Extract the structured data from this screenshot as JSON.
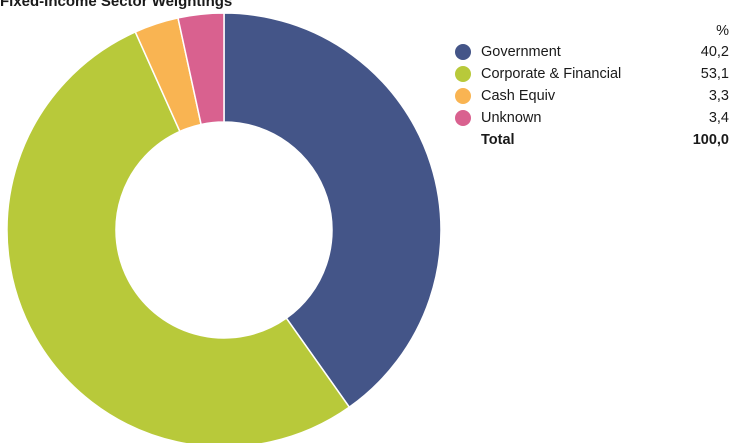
{
  "title": "Fixed-Income Sector Weightings",
  "chart_data": {
    "type": "pie",
    "donut": true,
    "unit": "%",
    "categories": [
      "Government",
      "Corporate & Financial",
      "Cash Equiv",
      "Unknown"
    ],
    "values": [
      40.2,
      53.1,
      3.3,
      3.4
    ],
    "display_values": [
      "40,2",
      "53,1",
      "3,3",
      "3,4"
    ],
    "colors": [
      "#445588",
      "#b8c93a",
      "#f9b452",
      "#d9618f"
    ],
    "total_label": "Total",
    "total_value": "100,0",
    "legend_position": "right"
  }
}
